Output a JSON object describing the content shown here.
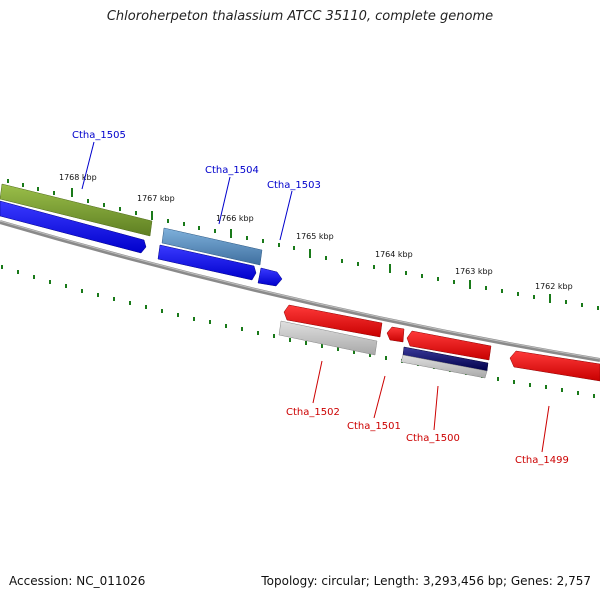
{
  "title": "Chloroherpeton thalassium ATCC 35110, complete genome",
  "footer": {
    "accession": "Accession: NC_011026",
    "topology": "Topology: circular; Length: 3,293,456 bp; Genes: 2,757"
  },
  "colors": {
    "forward_label": "#0000cc",
    "reverse_label": "#cc0000",
    "ticks": "#1a7a1a",
    "backbone": "#8a8a8a"
  },
  "kbp_labels": [
    "1768 kbp",
    "1767 kbp",
    "1766 kbp",
    "1765 kbp",
    "1764 kbp",
    "1763 kbp",
    "1762 kbp"
  ],
  "genes_forward": [
    "Ctha_1505",
    "Ctha_1504",
    "Ctha_1503"
  ],
  "genes_reverse": [
    "Ctha_1502",
    "Ctha_1501",
    "Ctha_1500",
    "Ctha_1499"
  ]
}
